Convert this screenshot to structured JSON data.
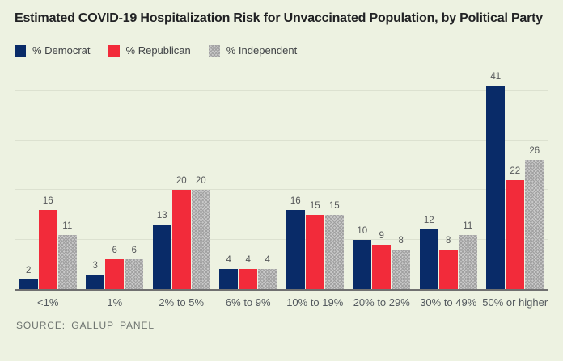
{
  "title": "Estimated COVID-19 Hospitalization Risk for Unvaccinated Population, by Political Party",
  "source": "SOURCE: GALLUP PANEL",
  "legend": [
    {
      "label": "% Democrat"
    },
    {
      "label": "% Republican"
    },
    {
      "label": "% Independent"
    }
  ],
  "colors": {
    "background": "#edf2e1",
    "democrat": "#092b68",
    "republican": "#f22b3a",
    "independent": "#c9c9c9",
    "gridline": "#dce1d0",
    "axis": "#707070"
  },
  "chart_data": {
    "type": "bar",
    "title": "Estimated COVID-19 Hospitalization Risk for Unvaccinated Population, by Political Party",
    "categories": [
      "<1%",
      "1%",
      "2% to 5%",
      "6% to 9%",
      "10% to 19%",
      "20% to 29%",
      "30% to 49%",
      "50% or higher"
    ],
    "series": [
      {
        "name": "% Democrat",
        "values": [
          2,
          3,
          13,
          4,
          16,
          10,
          12,
          41
        ]
      },
      {
        "name": "% Republican",
        "values": [
          16,
          6,
          20,
          4,
          15,
          9,
          8,
          22
        ]
      },
      {
        "name": "% Independent",
        "values": [
          11,
          6,
          20,
          4,
          15,
          8,
          11,
          26
        ]
      }
    ],
    "xlabel": "",
    "ylabel": "",
    "ylim": [
      0,
      44
    ],
    "gridlines": [
      10,
      20,
      30,
      40
    ],
    "grid": true,
    "legend_position": "top-left",
    "value_labels": true,
    "source": "SOURCE: GALLUP PANEL"
  }
}
